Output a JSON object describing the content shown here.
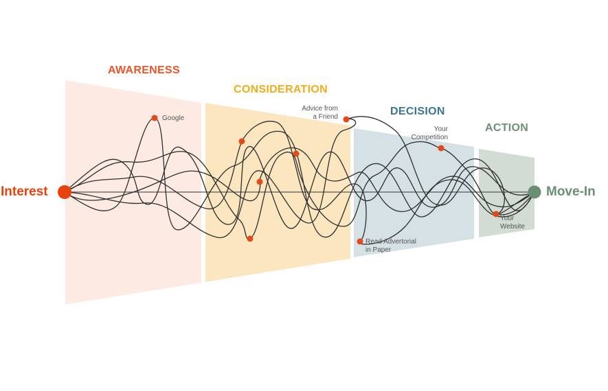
{
  "colors": {
    "awareness": "#e8552a",
    "consideration": "#f0ad1c",
    "decision": "#3f7393",
    "action": "#6e8f78",
    "touchpoint": "#e24a1c",
    "path": "#333333"
  },
  "stages": {
    "awareness": "AWARENESS",
    "consideration": "CONSIDERATION",
    "decision": "DECISION",
    "action": "ACTION"
  },
  "endpoints": {
    "start": "Interest",
    "end": "Move-In"
  },
  "touchpoints": {
    "google": [
      "Google"
    ],
    "advice": [
      "Advice from",
      "a Friend"
    ],
    "competition": [
      "Your",
      "Competition"
    ],
    "advertorial": [
      "Read Advertorial",
      "in Paper"
    ],
    "website": [
      "Your",
      "Website"
    ]
  }
}
